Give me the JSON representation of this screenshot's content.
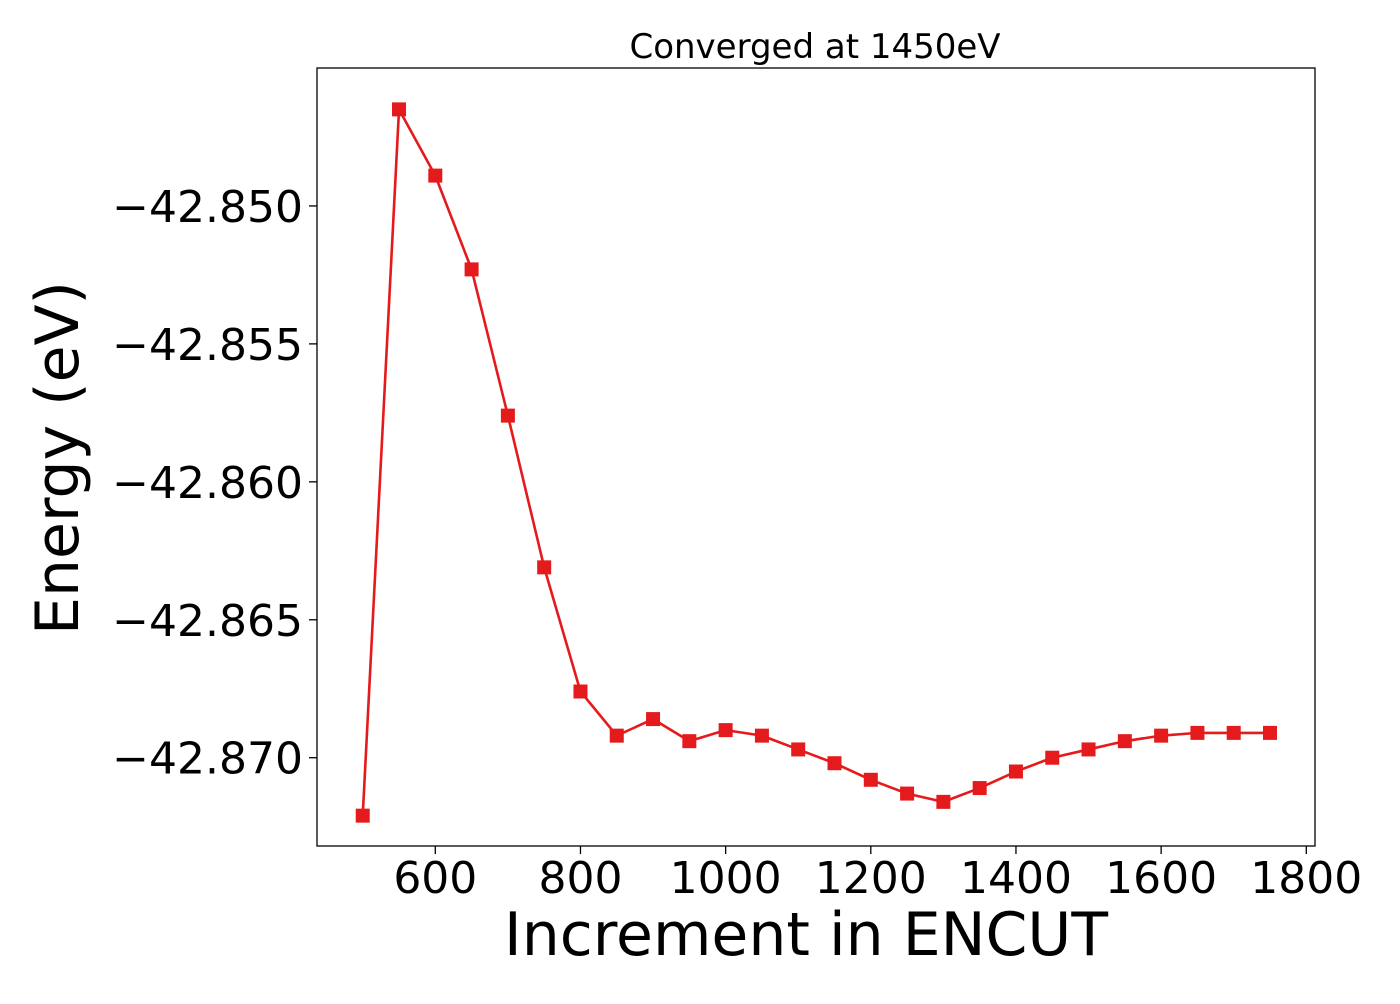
{
  "chart_data": {
    "type": "line",
    "title": "Converged at 1450eV",
    "xlabel": "Increment in ENCUT",
    "ylabel": "Energy (eV)",
    "xlim": [
      437,
      1812
    ],
    "ylim": [
      -42.8732,
      -42.845
    ],
    "xticks": [
      600,
      800,
      1000,
      1200,
      1400,
      1600,
      1800
    ],
    "xtick_labels": [
      "600",
      "800",
      "1000",
      "1200",
      "1400",
      "1600",
      "1800"
    ],
    "yticks": [
      -42.85,
      -42.855,
      -42.86,
      -42.865,
      -42.87
    ],
    "ytick_labels": [
      "−42.850",
      "−42.855",
      "−42.860",
      "−42.865",
      "−42.870"
    ],
    "grid": false,
    "legend": "none",
    "series": [
      {
        "color": "#e41a1c",
        "marker": "square",
        "x": [
          500,
          550,
          600,
          650,
          700,
          750,
          800,
          850,
          900,
          950,
          1000,
          1050,
          1100,
          1150,
          1200,
          1250,
          1300,
          1350,
          1400,
          1450,
          1500,
          1550,
          1600,
          1650,
          1700,
          1750
        ],
        "y": [
          -42.8721,
          -42.8465,
          -42.8489,
          -42.8523,
          -42.8576,
          -42.8631,
          -42.8676,
          -42.8692,
          -42.8686,
          -42.8694,
          -42.869,
          -42.8692,
          -42.8697,
          -42.8702,
          -42.8708,
          -42.8713,
          -42.8716,
          -42.8711,
          -42.8705,
          -42.87,
          -42.8697,
          -42.8694,
          -42.8692,
          -42.8691,
          -42.8691,
          -42.8691
        ]
      }
    ]
  }
}
